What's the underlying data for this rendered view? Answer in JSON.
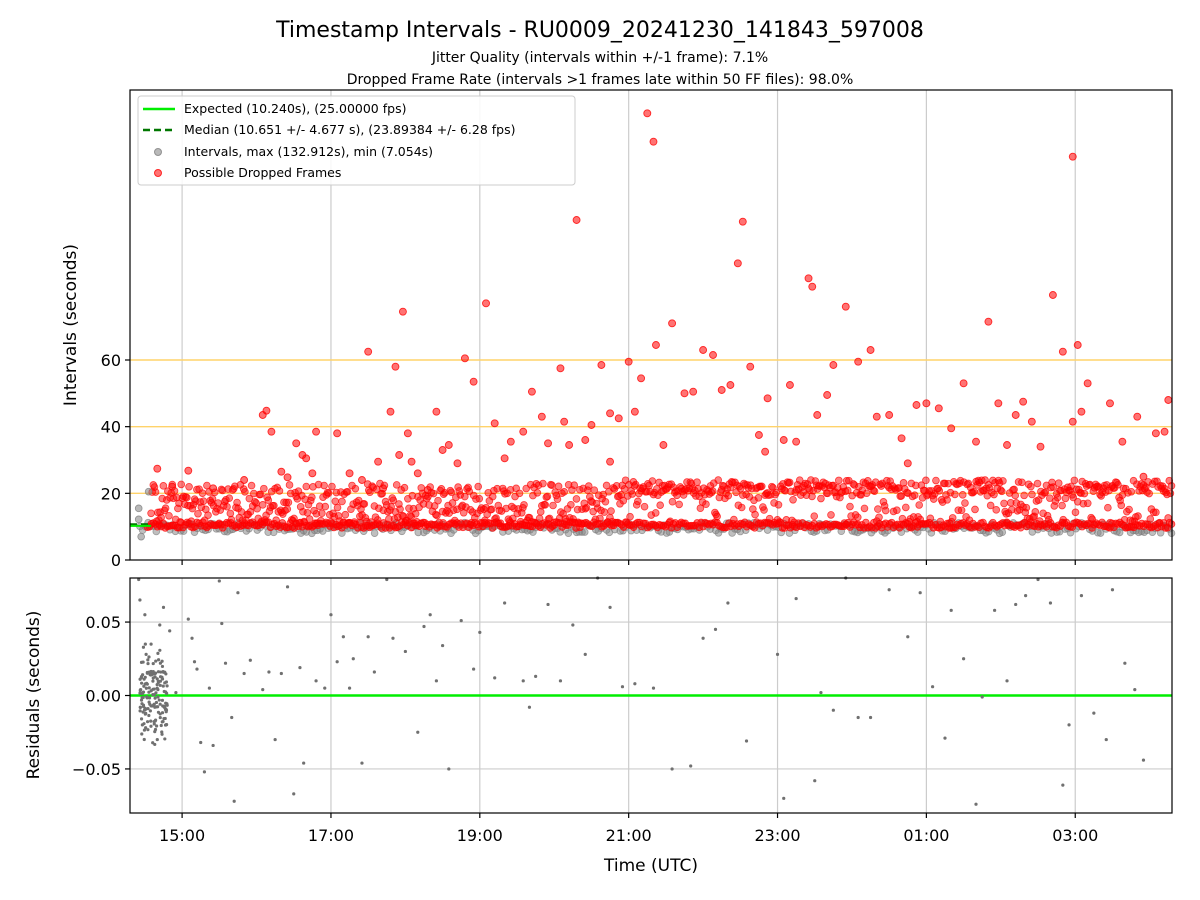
{
  "chart_data": [
    {
      "type": "scatter",
      "title": "Timestamp Intervals - RU0009_20241230_141843_597008",
      "subtitle_1": "Jitter Quality (intervals within +/-1 frame): 7.1%",
      "subtitle_2": "Dropped Frame Rate (intervals >1 frames late within 50 FF files): 98.0%",
      "ylabel": "Intervals (seconds)",
      "ylim": [
        0,
        141
      ],
      "yticks": [
        "0",
        "20",
        "40",
        "60"
      ],
      "reference_lines": [
        20,
        40,
        60
      ],
      "grid": "vertical",
      "legend_position": "top-left",
      "legend": {
        "expected": "Expected (10.240s), (25.00000 fps)",
        "median": "Median (10.651 +/- 4.677 s), (23.89384 +/- 6.28 fps)",
        "intervals": "Intervals, max (132.912s), min (7.054s)",
        "dropped": "Possible Dropped Frames"
      },
      "expected_interval": 10.24,
      "median_interval": 10.651,
      "x_start": "14:18",
      "x_end": "04:18",
      "series": [
        {
          "name": "Possible Dropped Frames",
          "color": "#ff0000",
          "points": [
            [
              "14:40",
              27.4
            ],
            [
              "14:52",
              22.0
            ],
            [
              "15:05",
              26.8
            ],
            [
              "15:25",
              21.5
            ],
            [
              "15:50",
              24.0
            ],
            [
              "16:05",
              43.5
            ],
            [
              "16:08",
              44.8
            ],
            [
              "16:12",
              38.5
            ],
            [
              "16:20",
              26.5
            ],
            [
              "16:25",
              24.8
            ],
            [
              "16:32",
              35.0
            ],
            [
              "16:37",
              31.5
            ],
            [
              "16:40",
              30.5
            ],
            [
              "16:45",
              26.0
            ],
            [
              "16:48",
              38.5
            ],
            [
              "17:05",
              38.0
            ],
            [
              "17:15",
              26.0
            ],
            [
              "17:25",
              24.0
            ],
            [
              "17:30",
              62.5
            ],
            [
              "17:42",
              21.5
            ],
            [
              "17:48",
              44.5
            ],
            [
              "17:52",
              58.0
            ],
            [
              "17:55",
              31.5
            ],
            [
              "17:58",
              74.5
            ],
            [
              "18:02",
              38.0
            ],
            [
              "18:05",
              29.5
            ],
            [
              "18:10",
              26.0
            ],
            [
              "18:18",
              21.0
            ],
            [
              "18:25",
              44.5
            ],
            [
              "18:30",
              33.0
            ],
            [
              "18:35",
              34.5
            ],
            [
              "18:42",
              29.0
            ],
            [
              "18:48",
              60.5
            ],
            [
              "18:55",
              53.5
            ],
            [
              "19:05",
              77.0
            ],
            [
              "19:12",
              41.0
            ],
            [
              "19:20",
              30.5
            ],
            [
              "19:25",
              35.5
            ],
            [
              "19:35",
              38.5
            ],
            [
              "19:42",
              50.5
            ],
            [
              "19:50",
              43.0
            ],
            [
              "19:55",
              35.0
            ],
            [
              "20:05",
              57.5
            ],
            [
              "20:08",
              41.5
            ],
            [
              "20:12",
              34.5
            ],
            [
              "20:18",
              102.0
            ],
            [
              "20:25",
              36.0
            ],
            [
              "20:30",
              40.5
            ],
            [
              "20:38",
              58.5
            ],
            [
              "20:45",
              44.0
            ],
            [
              "20:52",
              42.5
            ],
            [
              "21:00",
              59.5
            ],
            [
              "21:05",
              44.5
            ],
            [
              "21:10",
              54.5
            ],
            [
              "21:15",
              134.0
            ],
            [
              "21:20",
              125.5
            ],
            [
              "21:22",
              64.5
            ],
            [
              "21:28",
              34.5
            ],
            [
              "21:35",
              71.0
            ],
            [
              "21:45",
              50.0
            ],
            [
              "21:52",
              50.5
            ],
            [
              "22:00",
              63.0
            ],
            [
              "22:08",
              61.5
            ],
            [
              "22:15",
              51.0
            ],
            [
              "22:22",
              52.5
            ],
            [
              "22:28",
              89.0
            ],
            [
              "22:32",
              101.5
            ],
            [
              "22:38",
              58.0
            ],
            [
              "22:45",
              37.5
            ],
            [
              "22:52",
              48.5
            ],
            [
              "23:05",
              36.0
            ],
            [
              "23:10",
              52.5
            ],
            [
              "23:15",
              35.5
            ],
            [
              "23:25",
              84.5
            ],
            [
              "23:28",
              82.0
            ],
            [
              "23:32",
              43.5
            ],
            [
              "23:40",
              49.5
            ],
            [
              "23:45",
              58.5
            ],
            [
              "23:55",
              76.0
            ],
            [
              "24:05",
              59.5
            ],
            [
              "24:15",
              63.0
            ],
            [
              "24:20",
              43.0
            ],
            [
              "24:30",
              43.5
            ],
            [
              "24:45",
              29.0
            ],
            [
              "24:52",
              46.5
            ],
            [
              "25:00",
              47.0
            ],
            [
              "25:10",
              45.5
            ],
            [
              "25:20",
              39.5
            ],
            [
              "25:30",
              53.0
            ],
            [
              "25:40",
              35.5
            ],
            [
              "25:50",
              71.5
            ],
            [
              "25:58",
              47.0
            ],
            [
              "26:05",
              34.5
            ],
            [
              "26:12",
              43.5
            ],
            [
              "26:18",
              47.5
            ],
            [
              "26:25",
              41.5
            ],
            [
              "26:32",
              34.0
            ],
            [
              "26:42",
              79.5
            ],
            [
              "26:50",
              62.5
            ],
            [
              "26:58",
              41.5
            ],
            [
              "27:02",
              64.5
            ],
            [
              "27:05",
              44.5
            ],
            [
              "27:10",
              53.0
            ],
            [
              "27:28",
              47.0
            ],
            [
              "27:38",
              35.5
            ],
            [
              "27:50",
              43.0
            ],
            [
              "27:55",
              25.0
            ],
            [
              "28:05",
              38.0
            ],
            [
              "28:12",
              38.5
            ],
            [
              "28:15",
              48.0
            ],
            [
              "26:58",
              121.0
            ],
            [
              "20:45",
              29.5
            ],
            [
              "22:50",
              32.5
            ],
            [
              "24:40",
              36.5
            ],
            [
              "17:38",
              29.5
            ]
          ]
        }
      ]
    },
    {
      "type": "scatter",
      "xlabel": "Time (UTC)",
      "ylabel": "Residuals (seconds)",
      "ylim": [
        -0.08,
        0.08
      ],
      "yticks": [
        "0.05",
        "0.00",
        "−0.05"
      ],
      "xticks": [
        "15:00",
        "17:00",
        "19:00",
        "21:00",
        "23:00",
        "01:00",
        "03:00"
      ],
      "grid": "both",
      "zero_line_color": "#00ee00",
      "series": [
        {
          "name": "Residuals",
          "color": "#707070",
          "points": [
            [
              "14:25",
              0.079
            ],
            [
              "14:26",
              0.065
            ],
            [
              "14:30",
              0.055
            ],
            [
              "14:31",
              0.028
            ],
            [
              "14:35",
              0.035
            ],
            [
              "14:38",
              -0.008
            ],
            [
              "14:40",
              -0.03
            ],
            [
              "14:42",
              0.048
            ],
            [
              "14:45",
              0.06
            ],
            [
              "14:50",
              0.044
            ],
            [
              "14:55",
              0.002
            ],
            [
              "15:05",
              0.052
            ],
            [
              "15:08",
              0.039
            ],
            [
              "15:10",
              0.023
            ],
            [
              "15:12",
              0.018
            ],
            [
              "15:15",
              -0.032
            ],
            [
              "15:18",
              -0.052
            ],
            [
              "15:22",
              0.005
            ],
            [
              "15:25",
              -0.034
            ],
            [
              "15:30",
              0.078
            ],
            [
              "15:32",
              0.049
            ],
            [
              "15:35",
              0.022
            ],
            [
              "15:40",
              -0.015
            ],
            [
              "15:42",
              -0.072
            ],
            [
              "15:45",
              0.07
            ],
            [
              "15:50",
              0.015
            ],
            [
              "15:55",
              0.024
            ],
            [
              "16:05",
              0.004
            ],
            [
              "16:10",
              0.016
            ],
            [
              "16:15",
              -0.03
            ],
            [
              "16:20",
              0.015
            ],
            [
              "16:25",
              0.074
            ],
            [
              "16:30",
              -0.067
            ],
            [
              "16:35",
              0.019
            ],
            [
              "16:38",
              -0.046
            ],
            [
              "16:48",
              0.01
            ],
            [
              "16:55",
              0.005
            ],
            [
              "17:00",
              0.055
            ],
            [
              "17:05",
              0.023
            ],
            [
              "17:10",
              0.04
            ],
            [
              "17:15",
              0.005
            ],
            [
              "17:18",
              0.025
            ],
            [
              "17:25",
              -0.046
            ],
            [
              "17:30",
              0.04
            ],
            [
              "17:35",
              0.016
            ],
            [
              "17:45",
              0.079
            ],
            [
              "17:50",
              0.039
            ],
            [
              "18:00",
              0.03
            ],
            [
              "18:10",
              -0.025
            ],
            [
              "18:15",
              0.047
            ],
            [
              "18:20",
              0.055
            ],
            [
              "18:25",
              0.01
            ],
            [
              "18:30",
              0.034
            ],
            [
              "18:35",
              -0.05
            ],
            [
              "18:45",
              0.051
            ],
            [
              "18:55",
              0.018
            ],
            [
              "19:00",
              0.043
            ],
            [
              "19:12",
              0.012
            ],
            [
              "19:20",
              0.063
            ],
            [
              "19:35",
              0.01
            ],
            [
              "19:40",
              -0.008
            ],
            [
              "19:45",
              0.013
            ],
            [
              "19:55",
              0.062
            ],
            [
              "20:05",
              0.01
            ],
            [
              "20:15",
              0.048
            ],
            [
              "20:25",
              0.028
            ],
            [
              "20:35",
              0.08
            ],
            [
              "20:45",
              0.06
            ],
            [
              "20:55",
              0.006
            ],
            [
              "21:05",
              0.008
            ],
            [
              "21:20",
              0.005
            ],
            [
              "21:35",
              -0.05
            ],
            [
              "21:50",
              -0.048
            ],
            [
              "22:00",
              0.039
            ],
            [
              "22:10",
              0.045
            ],
            [
              "22:20",
              0.063
            ],
            [
              "22:35",
              -0.031
            ],
            [
              "23:00",
              0.028
            ],
            [
              "23:05",
              -0.07
            ],
            [
              "23:15",
              0.066
            ],
            [
              "23:30",
              -0.058
            ],
            [
              "23:35",
              0.002
            ],
            [
              "23:45",
              -0.01
            ],
            [
              "23:55",
              0.08
            ],
            [
              "24:05",
              -0.015
            ],
            [
              "24:15",
              -0.015
            ],
            [
              "24:30",
              0.072
            ],
            [
              "24:45",
              0.04
            ],
            [
              "24:55",
              0.07
            ],
            [
              "25:05",
              0.006
            ],
            [
              "25:15",
              -0.029
            ],
            [
              "25:20",
              0.058
            ],
            [
              "25:30",
              0.025
            ],
            [
              "25:40",
              -0.074
            ],
            [
              "25:45",
              -0.001
            ],
            [
              "25:55",
              0.058
            ],
            [
              "26:05",
              0.01
            ],
            [
              "26:12",
              0.062
            ],
            [
              "26:20",
              0.068
            ],
            [
              "26:30",
              0.079
            ],
            [
              "26:40",
              0.063
            ],
            [
              "26:50",
              -0.061
            ],
            [
              "26:55",
              -0.02
            ],
            [
              "27:05",
              0.068
            ],
            [
              "27:15",
              -0.012
            ],
            [
              "27:25",
              -0.03
            ],
            [
              "27:30",
              0.072
            ],
            [
              "27:40",
              0.022
            ],
            [
              "27:48",
              0.004
            ],
            [
              "27:55",
              -0.044
            ]
          ]
        }
      ]
    }
  ],
  "colors": {
    "expected": "#00ee00",
    "median": "#007700",
    "intervals": "#808080",
    "dropped": "#ff0000",
    "reference_line": "#ffd36a",
    "grid": "#cccccc"
  }
}
